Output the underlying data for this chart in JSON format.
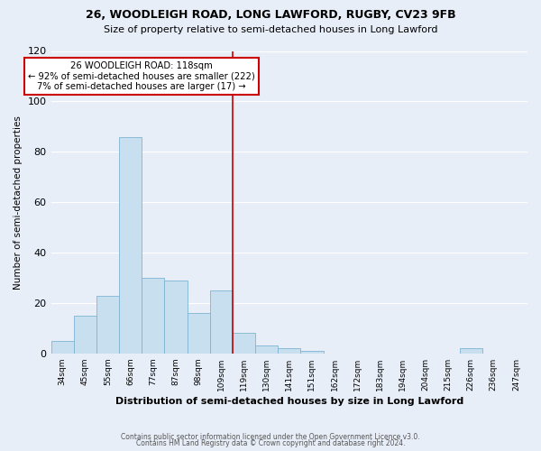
{
  "title": "26, WOODLEIGH ROAD, LONG LAWFORD, RUGBY, CV23 9FB",
  "subtitle": "Size of property relative to semi-detached houses in Long Lawford",
  "xlabel": "Distribution of semi-detached houses by size in Long Lawford",
  "ylabel": "Number of semi-detached properties",
  "footer1": "Contains HM Land Registry data © Crown copyright and database right 2024.",
  "footer2": "Contains public sector information licensed under the Open Government Licence v3.0.",
  "bin_labels": [
    "34sqm",
    "45sqm",
    "55sqm",
    "66sqm",
    "77sqm",
    "87sqm",
    "98sqm",
    "109sqm",
    "119sqm",
    "130sqm",
    "141sqm",
    "151sqm",
    "162sqm",
    "172sqm",
    "183sqm",
    "194sqm",
    "204sqm",
    "215sqm",
    "226sqm",
    "236sqm",
    "247sqm"
  ],
  "bar_heights": [
    5,
    15,
    23,
    86,
    30,
    29,
    16,
    25,
    8,
    3,
    2,
    1,
    0,
    0,
    0,
    0,
    0,
    0,
    2,
    0,
    0
  ],
  "bar_color": "#c8dff0",
  "bar_edge_color": "#7fb4d4",
  "vline_x_bin": 8,
  "vline_color": "#cc0000",
  "annotation_title": "26 WOODLEIGH ROAD: 118sqm",
  "annotation_line1": "← 92% of semi-detached houses are smaller (222)",
  "annotation_line2": "7% of semi-detached houses are larger (17) →",
  "annotation_box_color": "#ffffff",
  "annotation_box_edge": "#cc0000",
  "ylim": [
    0,
    120
  ],
  "yticks": [
    0,
    20,
    40,
    60,
    80,
    100,
    120
  ],
  "background_color": "#e8eef8",
  "plot_background": "#e8eef8",
  "grid_color": "#ffffff"
}
